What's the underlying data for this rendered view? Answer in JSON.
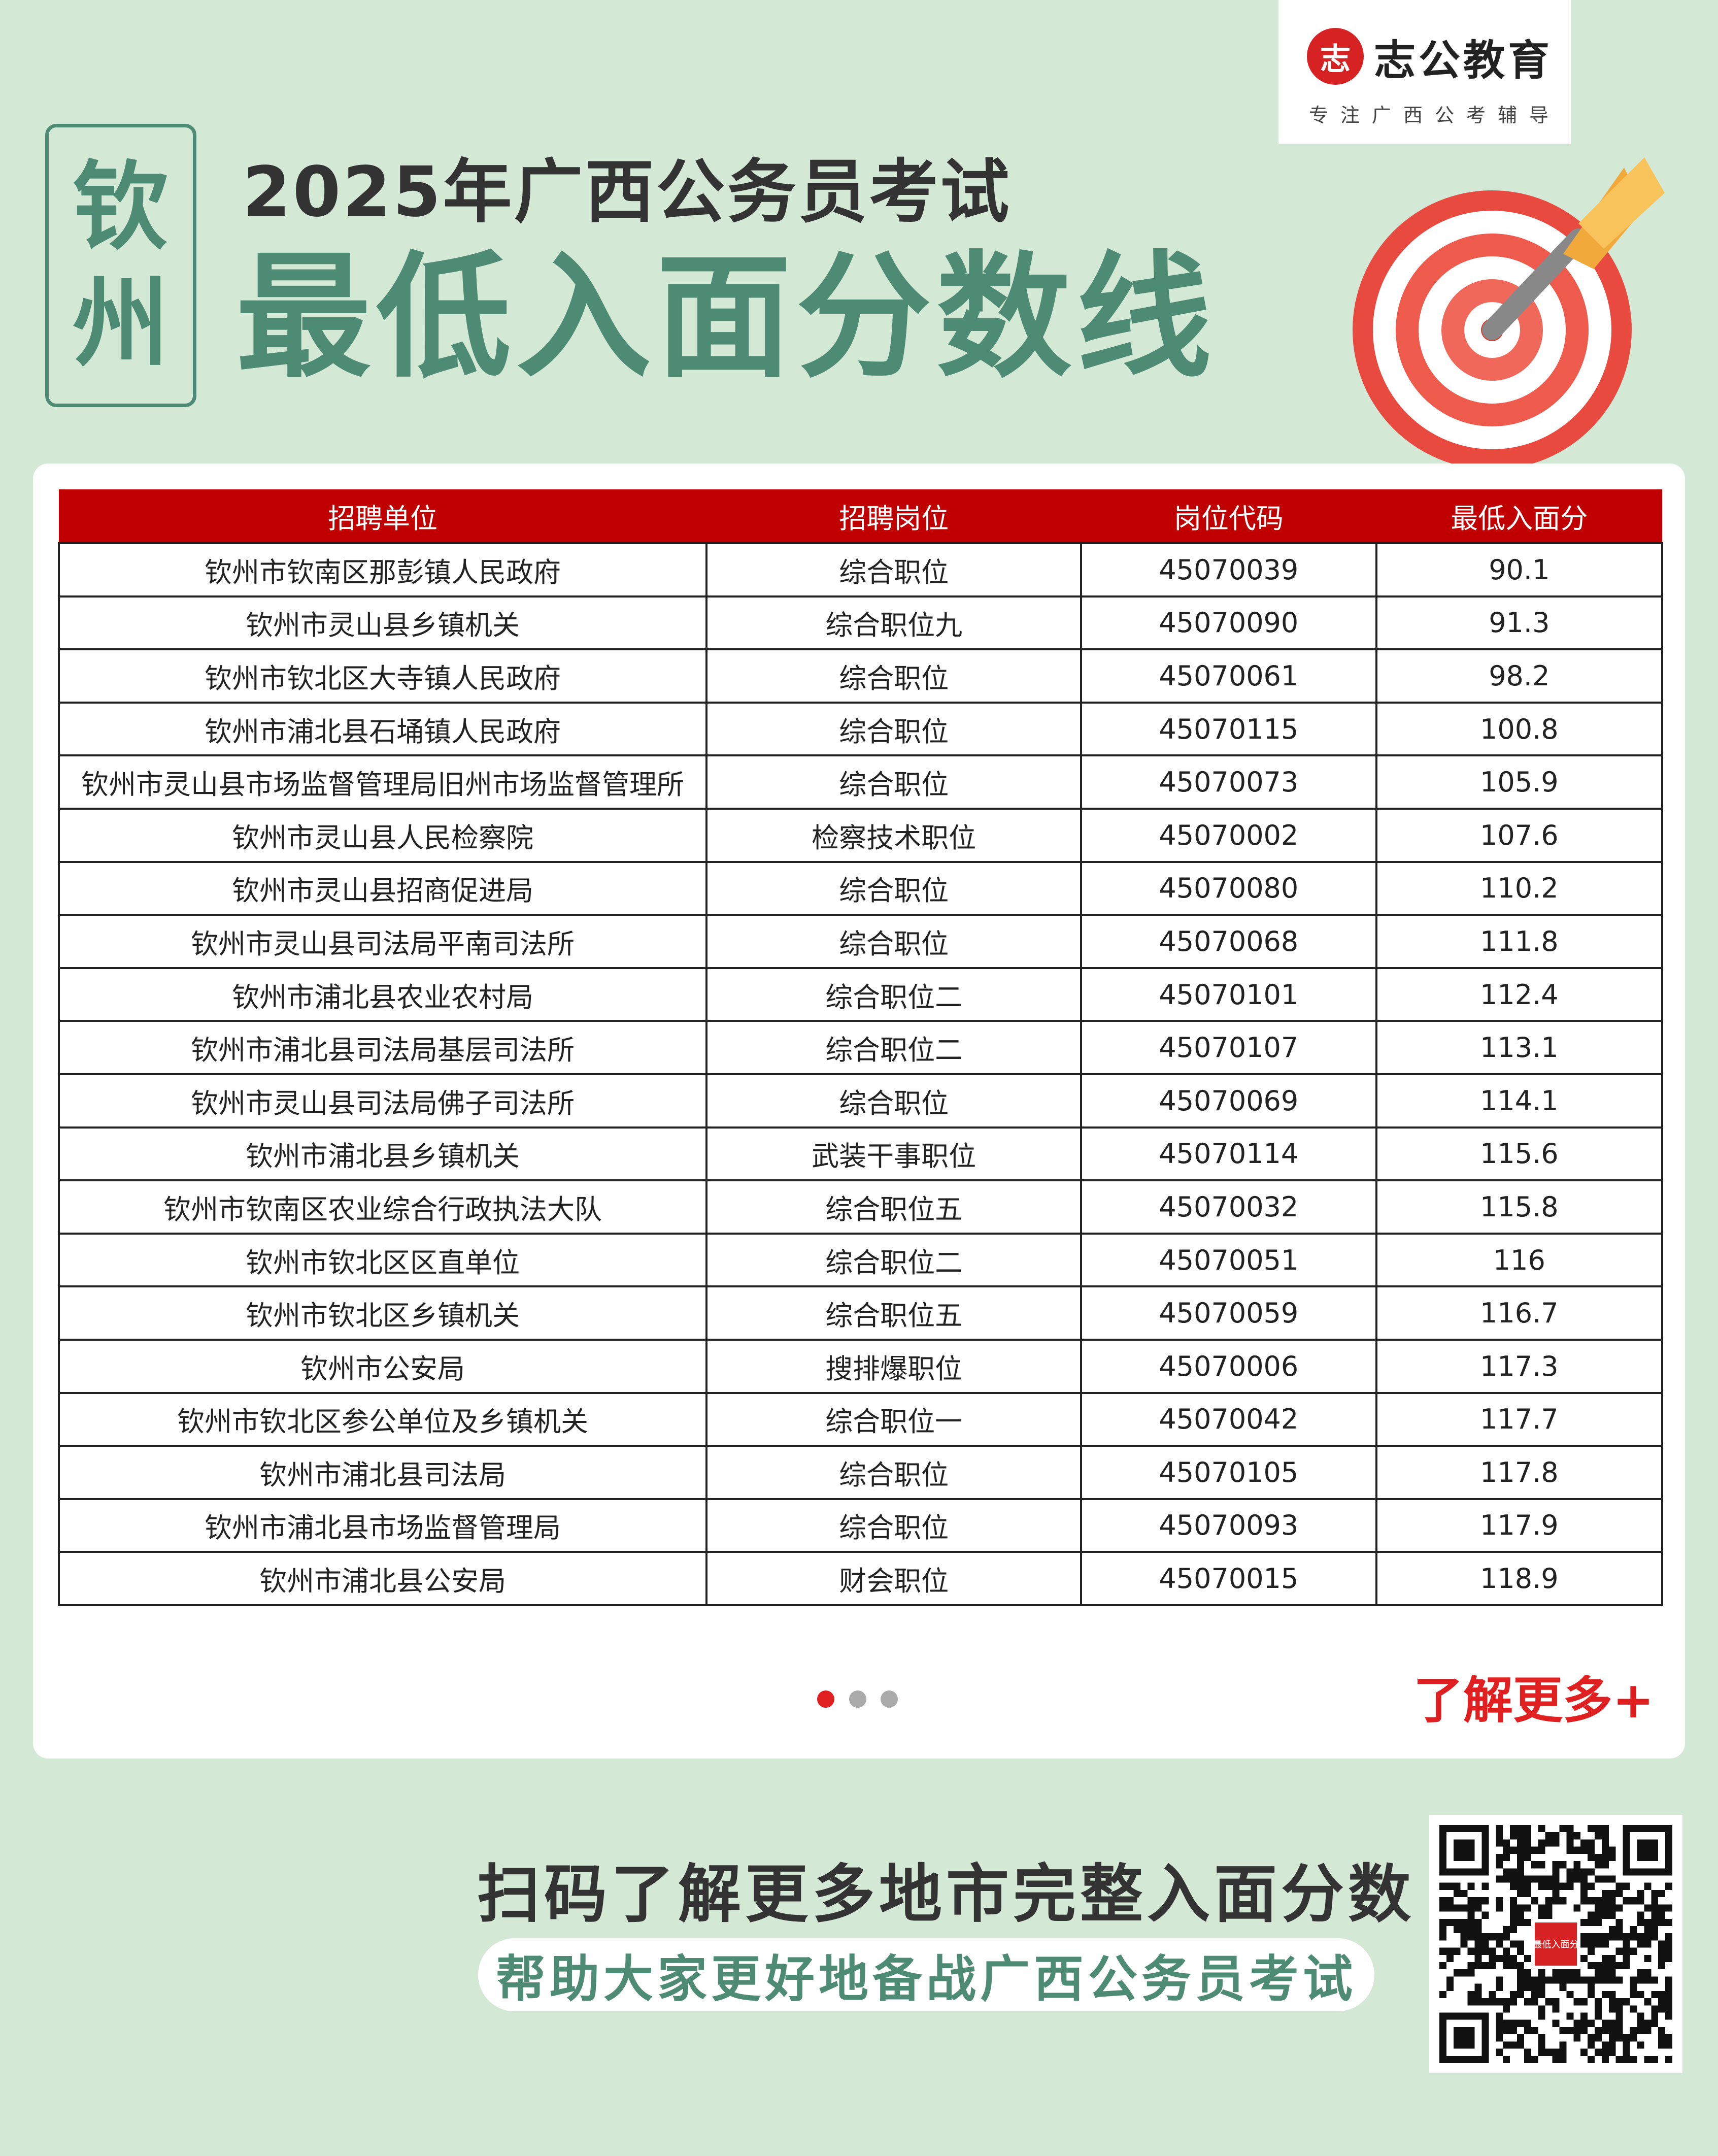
{
  "logo": {
    "brand": "志公教育",
    "slogan": "专注广西公考辅导",
    "mark": "志"
  },
  "city": [
    "钦",
    "州"
  ],
  "title": {
    "line1": "2025年广西公务员考试",
    "line2": "最低入面分数线"
  },
  "table": {
    "headers": [
      "招聘单位",
      "招聘岗位",
      "岗位代码",
      "最低入面分"
    ],
    "rows": [
      [
        "钦州市钦南区那彭镇人民政府",
        "综合职位",
        "45070039",
        "90.1"
      ],
      [
        "钦州市灵山县乡镇机关",
        "综合职位九",
        "45070090",
        "91.3"
      ],
      [
        "钦州市钦北区大寺镇人民政府",
        "综合职位",
        "45070061",
        "98.2"
      ],
      [
        "钦州市浦北县石埇镇人民政府",
        "综合职位",
        "45070115",
        "100.8"
      ],
      [
        "钦州市灵山县市场监督管理局旧州市场监督管理所",
        "综合职位",
        "45070073",
        "105.9"
      ],
      [
        "钦州市灵山县人民检察院",
        "检察技术职位",
        "45070002",
        "107.6"
      ],
      [
        "钦州市灵山县招商促进局",
        "综合职位",
        "45070080",
        "110.2"
      ],
      [
        "钦州市灵山县司法局平南司法所",
        "综合职位",
        "45070068",
        "111.8"
      ],
      [
        "钦州市浦北县农业农村局",
        "综合职位二",
        "45070101",
        "112.4"
      ],
      [
        "钦州市浦北县司法局基层司法所",
        "综合职位二",
        "45070107",
        "113.1"
      ],
      [
        "钦州市灵山县司法局佛子司法所",
        "综合职位",
        "45070069",
        "114.1"
      ],
      [
        "钦州市浦北县乡镇机关",
        "武装干事职位",
        "45070114",
        "115.6"
      ],
      [
        "钦州市钦南区农业综合行政执法大队",
        "综合职位五",
        "45070032",
        "115.8"
      ],
      [
        "钦州市钦北区区直单位",
        "综合职位二",
        "45070051",
        "116"
      ],
      [
        "钦州市钦北区乡镇机关",
        "综合职位五",
        "45070059",
        "116.7"
      ],
      [
        "钦州市公安局",
        "搜排爆职位",
        "45070006",
        "117.3"
      ],
      [
        "钦州市钦北区参公单位及乡镇机关",
        "综合职位一",
        "45070042",
        "117.7"
      ],
      [
        "钦州市浦北县司法局",
        "综合职位",
        "45070105",
        "117.8"
      ],
      [
        "钦州市浦北县市场监督管理局",
        "综合职位",
        "45070093",
        "117.9"
      ],
      [
        "钦州市浦北县公安局",
        "财会职位",
        "45070015",
        "118.9"
      ]
    ]
  },
  "pagination": {
    "pages": 3,
    "current": 1
  },
  "more_label": "了解更多+",
  "footer": {
    "scan": "扫码了解更多地市完整入面分数",
    "slogan": "帮助大家更好地备战广西公务员考试",
    "qr_badge": "最低入面分"
  },
  "colors": {
    "background": "#d4e8d6",
    "accent_green": "#4e8b74",
    "header_red": "#c00000",
    "more_red": "#e02020"
  }
}
